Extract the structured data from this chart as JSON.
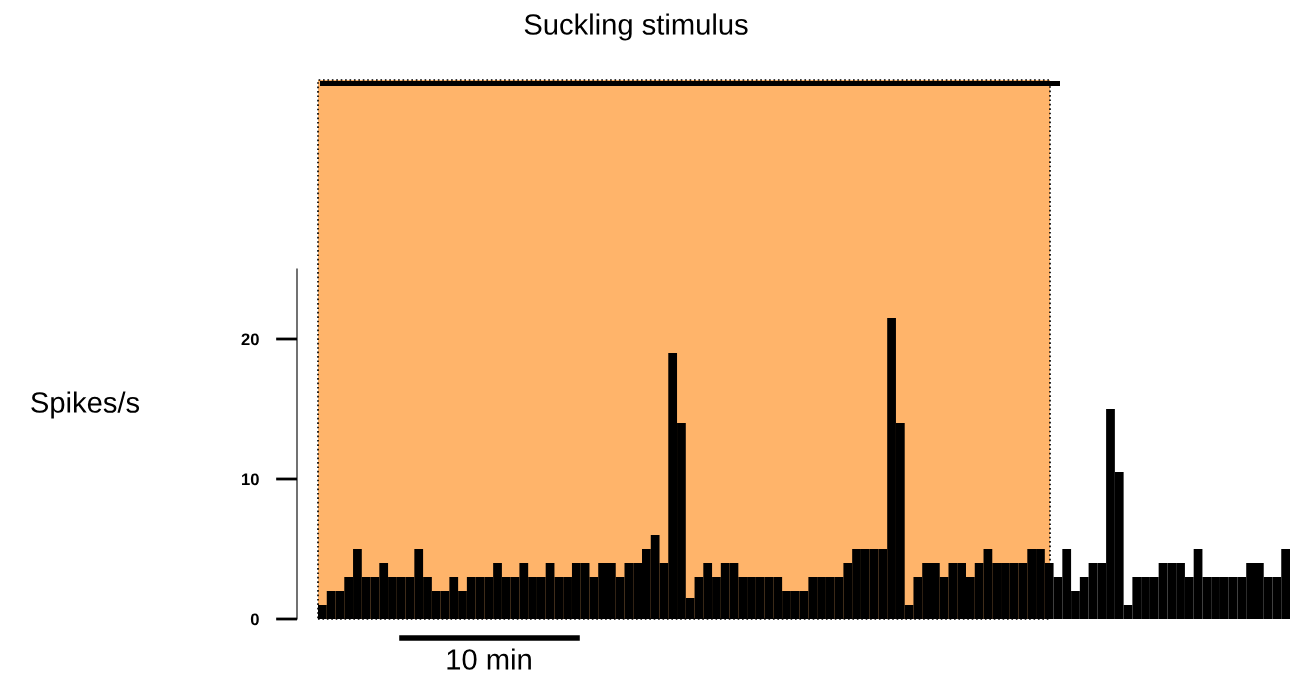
{
  "chart_data": {
    "type": "bar",
    "title": "Suckling stimulus",
    "ylabel": "Spikes/s",
    "categories": [
      null,
      null,
      null,
      null,
      null,
      null,
      null,
      null,
      null,
      null,
      null,
      null,
      null,
      null,
      null,
      null,
      null,
      null,
      null,
      null,
      null,
      null,
      null,
      null,
      null,
      null,
      null,
      null,
      null,
      null,
      null,
      null,
      null,
      null,
      null,
      null,
      null,
      null,
      null,
      null,
      null,
      null,
      null,
      null,
      null,
      null,
      null,
      null,
      null,
      null,
      null,
      null,
      null,
      null,
      null,
      null,
      null,
      null,
      null,
      null,
      null,
      null,
      null,
      null,
      null,
      null,
      null,
      null,
      null,
      null,
      null,
      null,
      null,
      null,
      null,
      null,
      null,
      null,
      null,
      null,
      null,
      null,
      null,
      null,
      null,
      null,
      null,
      null,
      null,
      null,
      null,
      null,
      null,
      null,
      null,
      null,
      null,
      null,
      null,
      null,
      null,
      null,
      null,
      null,
      null,
      null,
      null,
      null,
      null,
      null,
      null
    ],
    "values": [
      1,
      2,
      2,
      3,
      5,
      3,
      3,
      4,
      3,
      3,
      3,
      5,
      3,
      2,
      2,
      3,
      2,
      3,
      3,
      3,
      4,
      3,
      3,
      4,
      3,
      3,
      4,
      3,
      3,
      4,
      4,
      3,
      4,
      4,
      3,
      4,
      4,
      5,
      6,
      4,
      19,
      14,
      1.5,
      3,
      4,
      3,
      4,
      4,
      3,
      3,
      3,
      3,
      3,
      2,
      2,
      2,
      3,
      3,
      3,
      3,
      4,
      5,
      5,
      5,
      5,
      21.5,
      14,
      1,
      3,
      4,
      4,
      3,
      4,
      4,
      3,
      4,
      5,
      4,
      4,
      4,
      4,
      5,
      5,
      4,
      3,
      5,
      2,
      3,
      4,
      4,
      15,
      10.5,
      1,
      3,
      3,
      3,
      4,
      4,
      4,
      3,
      5,
      3,
      3,
      3,
      3,
      3,
      4,
      4,
      3,
      3,
      5
    ],
    "color": "#000000",
    "ylim": [
      0,
      38.5
    ],
    "yticks": [
      0,
      10,
      20
    ],
    "tick_labels": "y",
    "grid": false,
    "legend": false,
    "annotations": [
      "10 min"
    ]
  }
}
